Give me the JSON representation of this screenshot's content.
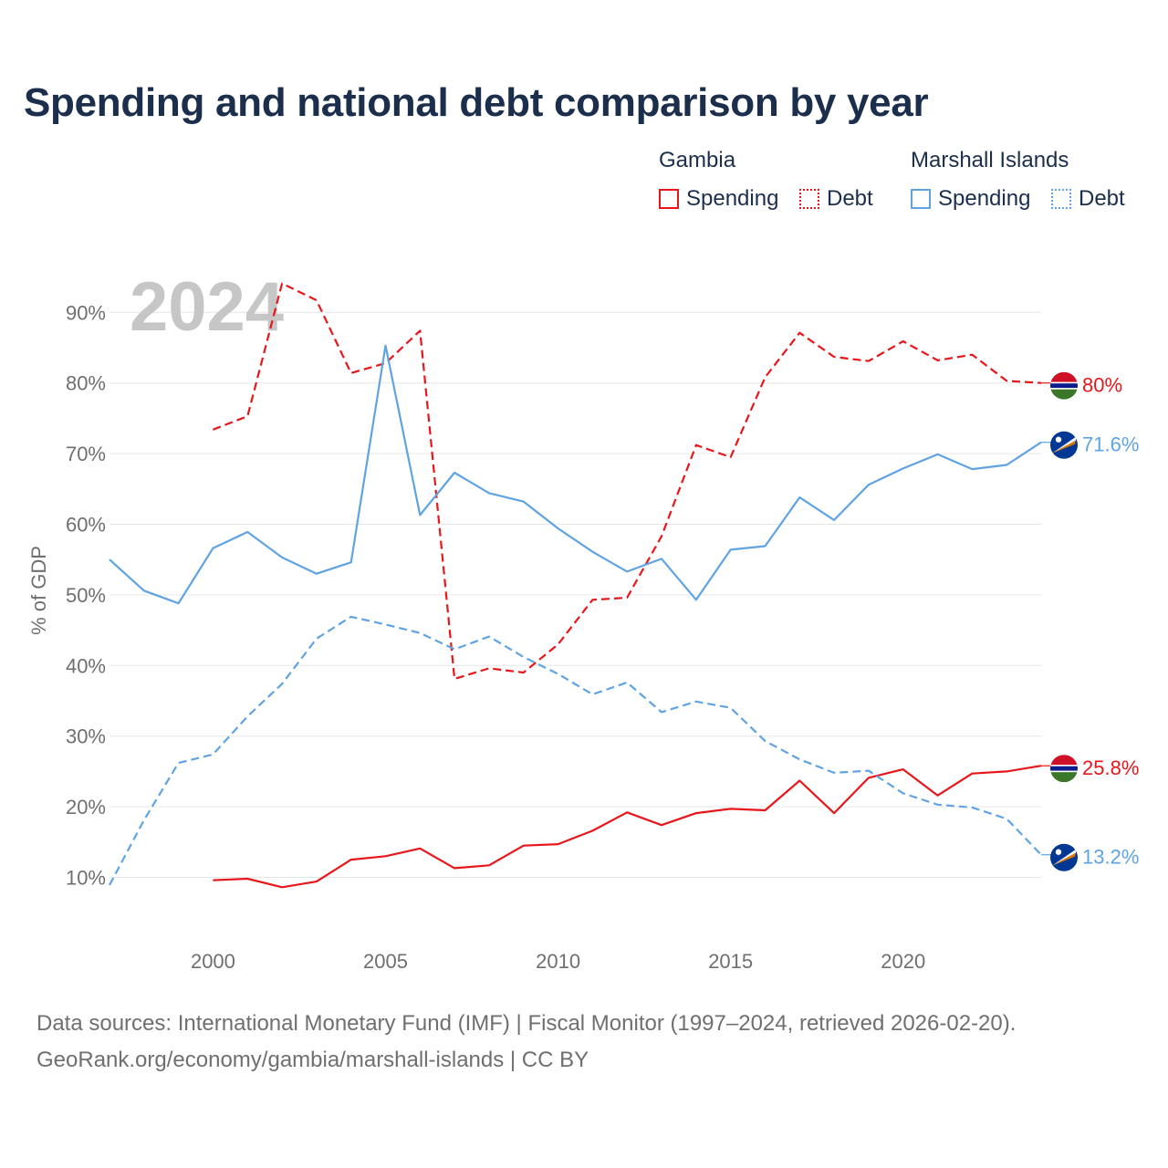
{
  "title": "Spending and national debt comparison by year",
  "legend": {
    "groups": [
      {
        "name": "Gambia",
        "items": [
          {
            "label": "Spending",
            "style": "solid",
            "color": "#e8161a"
          },
          {
            "label": "Debt",
            "style": "dotted",
            "color": "#e8161a"
          }
        ]
      },
      {
        "name": "Marshall Islands",
        "items": [
          {
            "label": "Spending",
            "style": "solid",
            "color": "#5fa3e3"
          },
          {
            "label": "Debt",
            "style": "dotted",
            "color": "#5fa3e3"
          }
        ]
      }
    ]
  },
  "footer": {
    "line1": "Data sources: International Monetary Fund (IMF) | Fiscal Monitor (1997–2024, retrieved 2026-02-20).",
    "line2": "GeoRank.org/economy/gambia/marshall-islands | CC BY"
  },
  "chart_data": {
    "type": "line",
    "title": "Spending and national debt comparison by year",
    "year_label": "2024",
    "ylabel": "% of GDP",
    "xlabel": "",
    "xlim": [
      1997,
      2024
    ],
    "ylim": [
      10,
      90
    ],
    "x_ticks": [
      2000,
      2005,
      2010,
      2015,
      2020
    ],
    "y_ticks": [
      10,
      20,
      30,
      40,
      50,
      60,
      70,
      80,
      90
    ],
    "y_tick_labels": [
      "10%",
      "20%",
      "30%",
      "40%",
      "50%",
      "60%",
      "70%",
      "80%",
      "90%"
    ],
    "grid": true,
    "series": [
      {
        "name": "Gambia Debt",
        "country": "Gambia",
        "metric": "Debt",
        "color": "#e8161a",
        "dashed": true,
        "end_label": "80%",
        "x": [
          2000,
          2001,
          2002,
          2003,
          2004,
          2005,
          2006,
          2007,
          2008,
          2009,
          2010,
          2011,
          2012,
          2013,
          2014,
          2015,
          2016,
          2017,
          2018,
          2019,
          2020,
          2021,
          2022,
          2023,
          2024
        ],
        "values": [
          73.4,
          75.3,
          94.1,
          91.7,
          81.4,
          82.8,
          87.4,
          38.1,
          39.6,
          39.0,
          43.0,
          49.3,
          49.6,
          58.3,
          71.2,
          69.5,
          80.8,
          87.1,
          83.7,
          83.1,
          85.9,
          83.2,
          84.0,
          80.3,
          80.0
        ]
      },
      {
        "name": "Marshall Islands Spending",
        "country": "Marshall Islands",
        "metric": "Spending",
        "color": "#5fa3e3",
        "dashed": false,
        "end_label": "71.6%",
        "x": [
          1997,
          1998,
          1999,
          2000,
          2001,
          2002,
          2003,
          2004,
          2005,
          2006,
          2007,
          2008,
          2009,
          2010,
          2011,
          2012,
          2013,
          2014,
          2015,
          2016,
          2017,
          2018,
          2019,
          2020,
          2021,
          2022,
          2023,
          2024
        ],
        "values": [
          55.0,
          50.6,
          48.8,
          56.6,
          58.9,
          55.3,
          53.0,
          54.6,
          85.3,
          61.3,
          67.3,
          64.4,
          63.2,
          59.4,
          56.1,
          53.3,
          55.1,
          49.3,
          56.4,
          56.9,
          63.8,
          60.6,
          65.6,
          67.9,
          69.9,
          67.8,
          68.4,
          71.6
        ]
      },
      {
        "name": "Gambia Spending",
        "country": "Gambia",
        "metric": "Spending",
        "color": "#e8161a",
        "dashed": false,
        "end_label": "25.8%",
        "x": [
          2000,
          2001,
          2002,
          2003,
          2004,
          2005,
          2006,
          2007,
          2008,
          2009,
          2010,
          2011,
          2012,
          2013,
          2014,
          2015,
          2016,
          2017,
          2018,
          2019,
          2020,
          2021,
          2022,
          2023,
          2024
        ],
        "values": [
          9.6,
          9.8,
          8.6,
          9.4,
          12.5,
          13.0,
          14.1,
          11.3,
          11.7,
          14.5,
          14.7,
          16.6,
          19.2,
          17.4,
          19.1,
          19.7,
          19.5,
          23.7,
          19.1,
          24.1,
          25.3,
          21.6,
          24.7,
          25.0,
          25.8
        ]
      },
      {
        "name": "Marshall Islands Debt",
        "country": "Marshall Islands",
        "metric": "Debt",
        "color": "#5fa3e3",
        "dashed": true,
        "end_label": "13.2%",
        "x": [
          1997,
          1998,
          1999,
          2000,
          2001,
          2002,
          2003,
          2004,
          2005,
          2006,
          2007,
          2008,
          2009,
          2010,
          2011,
          2012,
          2013,
          2014,
          2015,
          2016,
          2017,
          2018,
          2019,
          2020,
          2021,
          2022,
          2023,
          2024
        ],
        "values": [
          8.9,
          18.1,
          26.2,
          27.4,
          32.8,
          37.4,
          43.8,
          46.9,
          45.8,
          44.6,
          42.3,
          44.1,
          41.2,
          38.8,
          35.9,
          37.6,
          33.4,
          34.9,
          34.0,
          29.3,
          26.7,
          24.8,
          25.1,
          21.9,
          20.3,
          19.9,
          18.3,
          13.2
        ]
      }
    ]
  }
}
